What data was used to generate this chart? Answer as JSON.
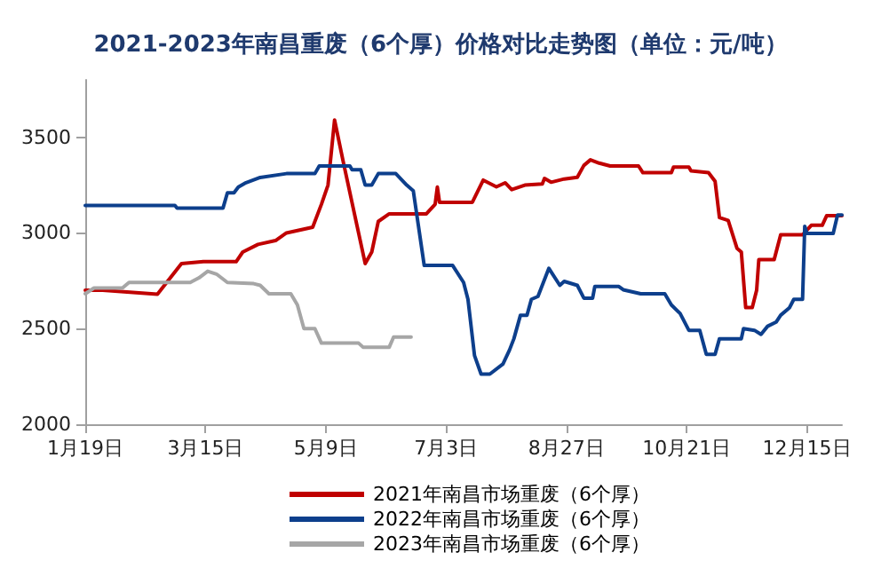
{
  "chart_data": {
    "type": "line",
    "title": "2021-2023年南昌重废（6个厚）价格对比走势图（单位：元/吨）",
    "xlim": [
      "--01-19",
      "--12-31"
    ],
    "xticks": [
      {
        "value": "--01-19",
        "label": "1月19日"
      },
      {
        "value": "--03-15",
        "label": "3月15日"
      },
      {
        "value": "--05-09",
        "label": "5月9日"
      },
      {
        "value": "--07-03",
        "label": "7月3日"
      },
      {
        "value": "--08-27",
        "label": "8月27日"
      },
      {
        "value": "--10-21",
        "label": "10月21日"
      },
      {
        "value": "--12-15",
        "label": "12月15日"
      }
    ],
    "ylim": [
      2000,
      3800
    ],
    "yticks": [
      2000,
      2500,
      3000,
      3500
    ],
    "grid": false,
    "legend": "bottom",
    "marker": "none",
    "line_style": "solid",
    "series": [
      {
        "name": "2021年南昌市场重废（6个厚）",
        "color": "#c00000",
        "x": [
          "--01-19",
          "--01-27",
          "--02-21",
          "--03-04",
          "--03-14",
          "--03-29",
          "--04-01",
          "--04-08",
          "--04-16",
          "--04-21",
          "--05-03",
          "--05-07",
          "--05-10",
          "--05-13",
          "--05-17",
          "--05-27",
          "--05-30",
          "--06-02",
          "--06-07",
          "--06-24",
          "--06-28",
          "--06-29",
          "--06-30",
          "--07-15",
          "--07-20",
          "--07-26",
          "--07-30",
          "--08-02",
          "--08-08",
          "--08-16",
          "--08-17",
          "--08-20",
          "--08-26",
          "--09-01",
          "--09-04",
          "--09-07",
          "--09-11",
          "--09-16",
          "--09-29",
          "--10-01",
          "--10-14",
          "--10-15",
          "--10-22",
          "--10-23",
          "--10-31",
          "--11-03",
          "--11-05",
          "--11-09",
          "--11-13",
          "--11-15",
          "--11-17",
          "--11-20",
          "--11-22",
          "--11-23",
          "--11-30",
          "--12-03",
          "--12-13",
          "--12-17",
          "--12-22",
          "--12-24",
          "--12-31"
        ],
        "values": [
          2700,
          2700,
          2680,
          2840,
          2850,
          2850,
          2900,
          2940,
          2960,
          3000,
          3030,
          3150,
          3250,
          3590,
          3370,
          2840,
          2900,
          3060,
          3100,
          3100,
          3150,
          3240,
          3160,
          3160,
          3276,
          3241,
          3262,
          3226,
          3250,
          3256,
          3285,
          3265,
          3282,
          3291,
          3353,
          3382,
          3365,
          3350,
          3350,
          3315,
          3315,
          3344,
          3344,
          3324,
          3315,
          3270,
          3080,
          3065,
          2920,
          2900,
          2610,
          2610,
          2700,
          2860,
          2860,
          2990,
          2990,
          3040,
          3040,
          3090,
          3090
        ]
      },
      {
        "name": "2022年南昌市场重废（6个厚）",
        "color": "#0d3f8c",
        "x": [
          "--01-19",
          "--03-01",
          "--03-02",
          "--03-23",
          "--03-25",
          "--03-28",
          "--03-30",
          "--04-02",
          "--04-09",
          "--04-21",
          "--05-04",
          "--05-06",
          "--05-20",
          "--05-21",
          "--05-25",
          "--05-27",
          "--05-30",
          "--06-02",
          "--06-10",
          "--06-15",
          "--06-18",
          "--06-23",
          "--07-06",
          "--07-11",
          "--07-13",
          "--07-16",
          "--07-19",
          "--07-23",
          "--07-29",
          "--08-01",
          "--08-03",
          "--08-06",
          "--08-09",
          "--08-11",
          "--08-14",
          "--08-19",
          "--08-24",
          "--08-26",
          "--09-01",
          "--09-04",
          "--09-08",
          "--09-09",
          "--09-20",
          "--09-22",
          "--09-30",
          "--10-11",
          "--10-14",
          "--10-18",
          "--10-22",
          "--10-27",
          "--10-30",
          "--11-03",
          "--11-05",
          "--11-15",
          "--11-16",
          "--11-21",
          "--11-24",
          "--11-27",
          "--12-01",
          "--12-03",
          "--12-07",
          "--12-09",
          "--12-13",
          "--12-14",
          "--12-15",
          "--12-27",
          "--12-29",
          "--12-31"
        ],
        "values": [
          3144,
          3144,
          3130,
          3130,
          3210,
          3210,
          3240,
          3260,
          3290,
          3310,
          3310,
          3350,
          3350,
          3330,
          3330,
          3250,
          3250,
          3310,
          3310,
          3250,
          3220,
          2830,
          2830,
          2741,
          2653,
          2359,
          2262,
          2262,
          2315,
          2388,
          2447,
          2570,
          2570,
          2653,
          2668,
          2815,
          2726,
          2747,
          2726,
          2659,
          2659,
          2720,
          2720,
          2703,
          2682,
          2682,
          2624,
          2579,
          2491,
          2491,
          2365,
          2365,
          2447,
          2447,
          2500,
          2491,
          2470,
          2512,
          2535,
          2570,
          2609,
          2653,
          2653,
          3035,
          2997,
          2997,
          3094,
          3094
        ]
      },
      {
        "name": "2023年南昌市场重废（6个厚）",
        "color": "#a6a6a6",
        "x": [
          "--01-19",
          "--01-23",
          "--02-05",
          "--02-08",
          "--03-08",
          "--03-12",
          "--03-16",
          "--03-20",
          "--03-25",
          "--04-06",
          "--04-09",
          "--04-13",
          "--04-23",
          "--04-26",
          "--04-29",
          "--05-04",
          "--05-07",
          "--05-24",
          "--05-26",
          "--06-07",
          "--06-09",
          "--06-17"
        ],
        "values": [
          2682,
          2712,
          2712,
          2741,
          2741,
          2765,
          2800,
          2785,
          2741,
          2735,
          2726,
          2682,
          2682,
          2624,
          2500,
          2500,
          2424,
          2424,
          2403,
          2403,
          2456,
          2456
        ]
      }
    ]
  }
}
